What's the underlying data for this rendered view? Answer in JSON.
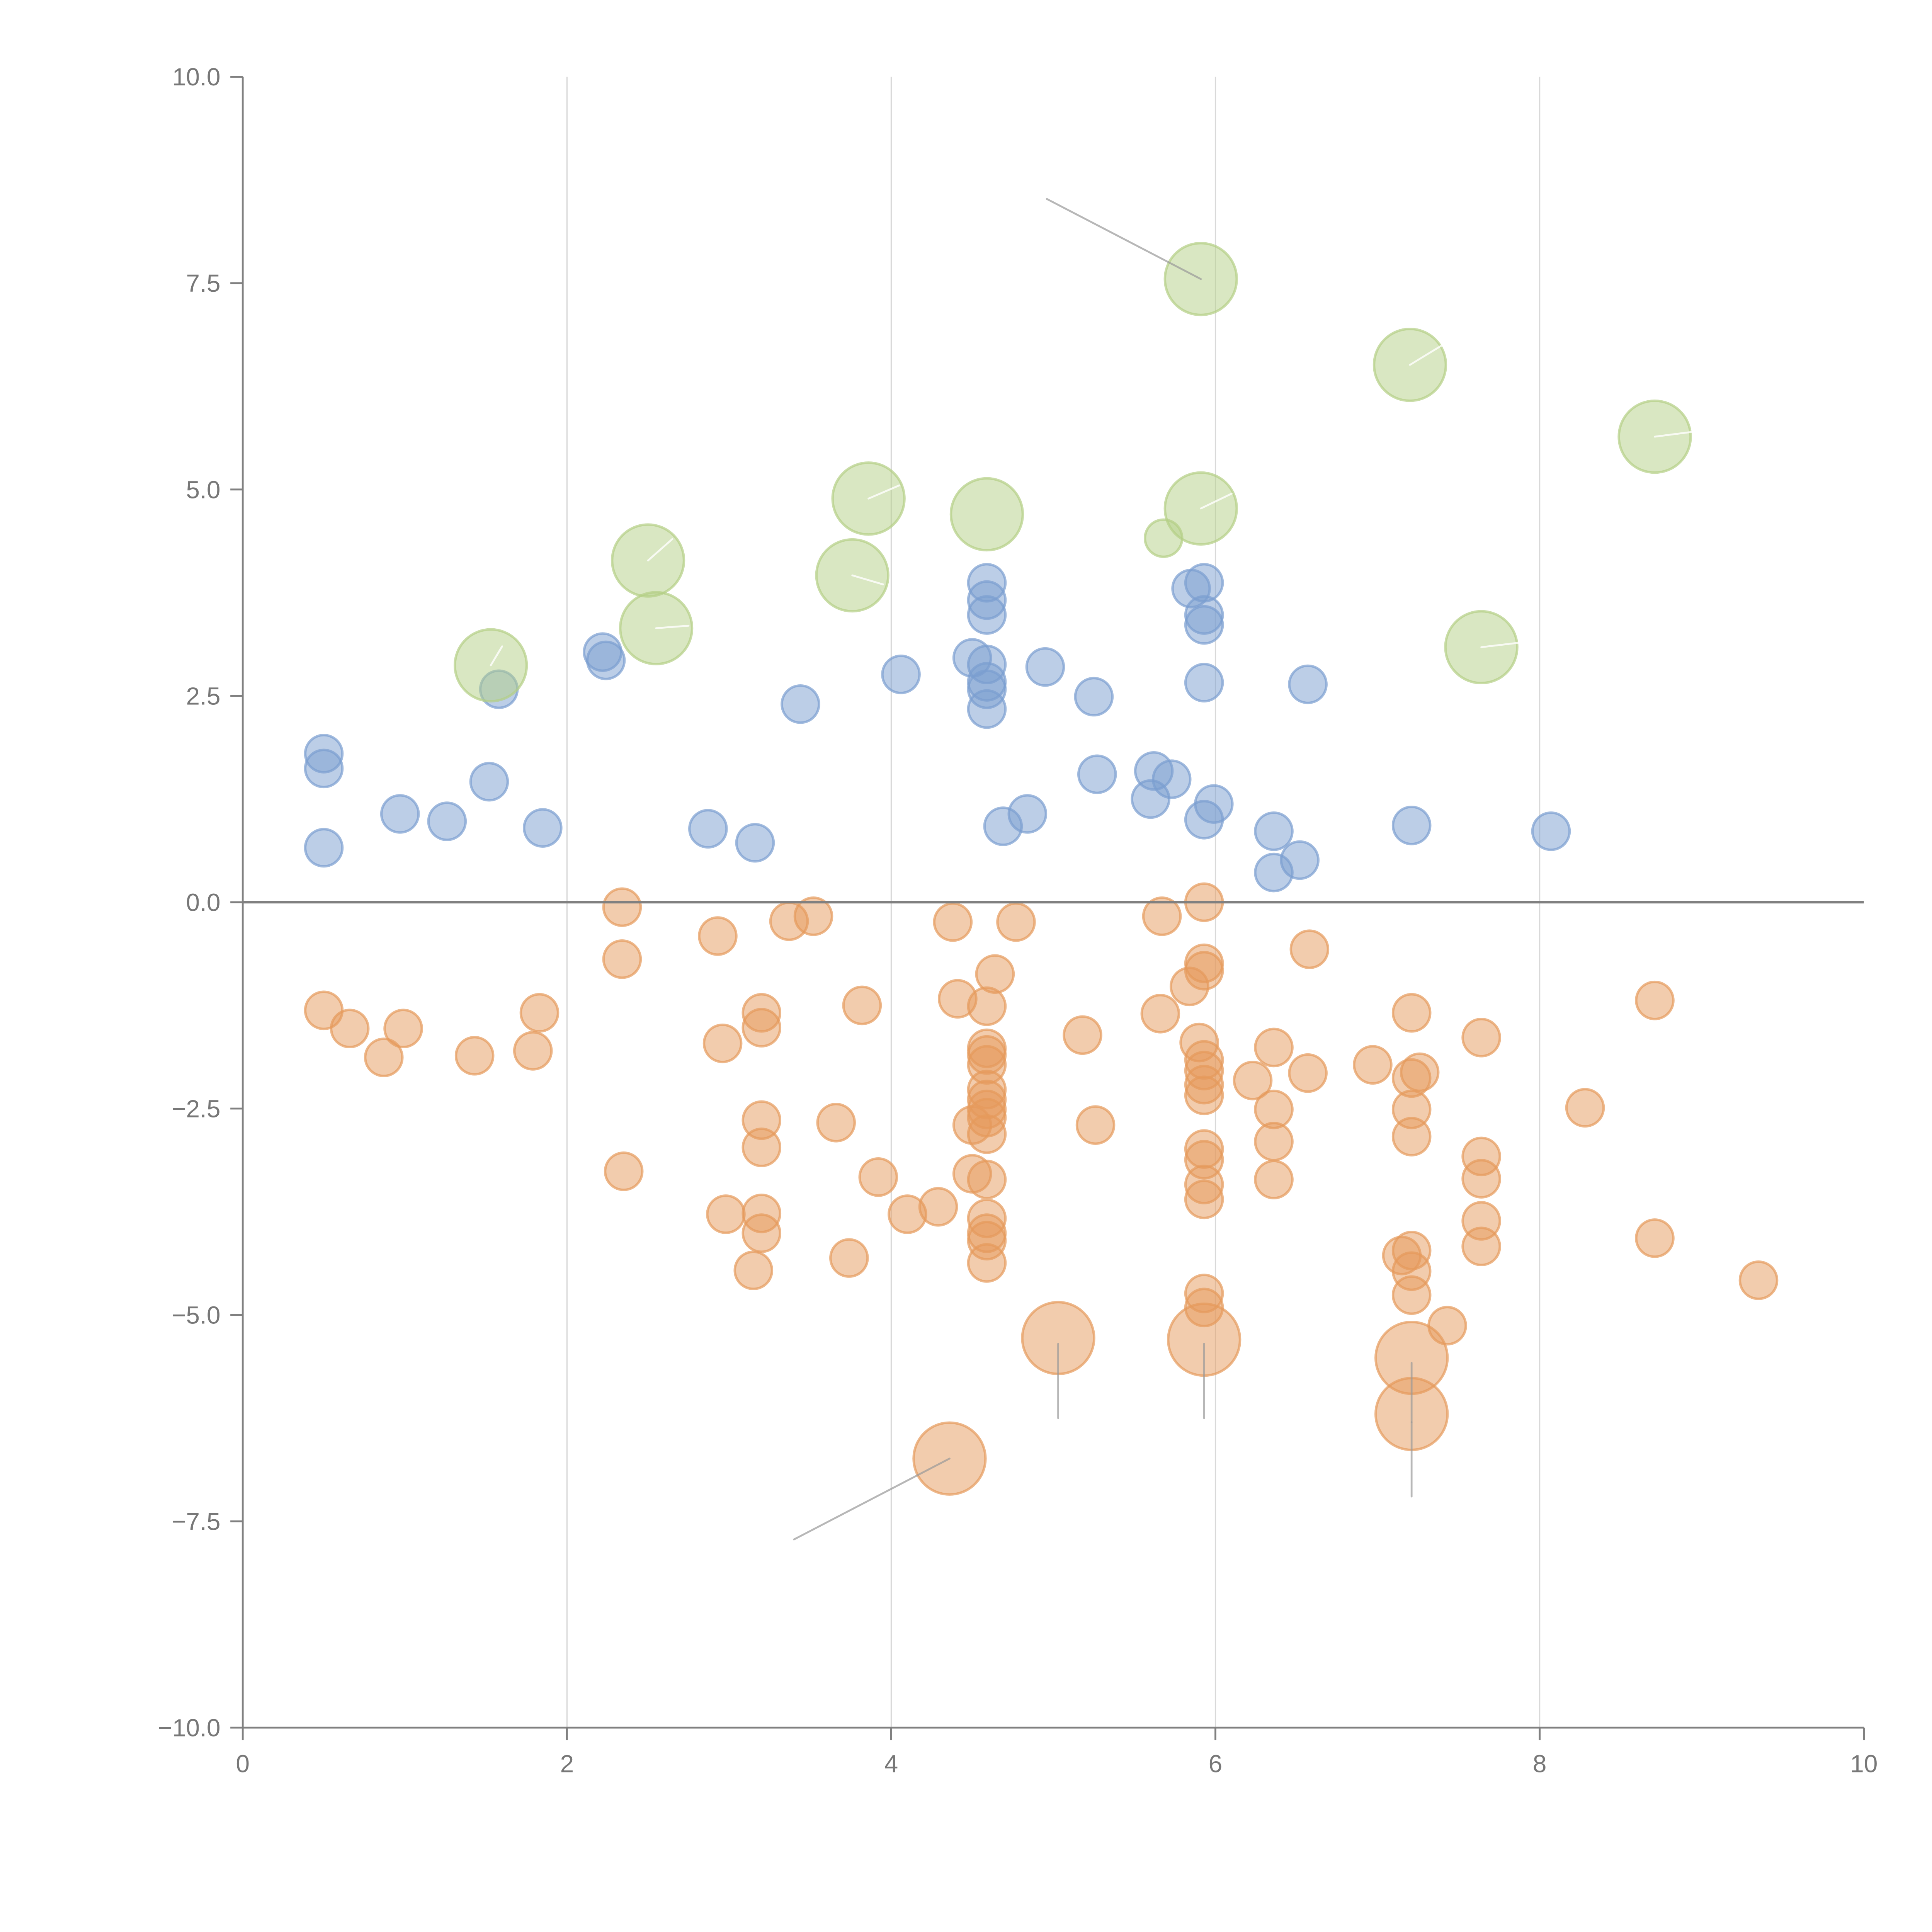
{
  "chart_data": {
    "type": "scatter",
    "title": "",
    "xlabel": "",
    "ylabel": "",
    "xlim": [
      0,
      10
    ],
    "ylim": [
      -10,
      10
    ],
    "grid": "vertical",
    "x_ticks": [
      "0",
      "2",
      "4",
      "6",
      "8",
      "10"
    ],
    "x_tick_values": [
      0,
      2,
      4,
      6,
      8,
      10
    ],
    "y_ticks": [
      "10.0",
      "7.5",
      "5.0",
      "2.5",
      "0.0",
      "−2.5",
      "−5.0",
      "−7.5",
      "−10.0"
    ],
    "y_tick_values": [
      10,
      7.5,
      5,
      2.5,
      0,
      -2.5,
      -5,
      -7.5,
      -10
    ],
    "colors": {
      "blue": "#7a9ed0",
      "green": "#b3cf85",
      "orange": "#e59a5b",
      "axis": "#808080",
      "grid": "#d9d9d9"
    },
    "series": [
      {
        "name": "blue",
        "size": "small",
        "points": [
          [
            0.5,
            1.8
          ],
          [
            0.5,
            1.62
          ],
          [
            0.5,
            0.66
          ],
          [
            0.97,
            1.07
          ],
          [
            1.26,
            0.98
          ],
          [
            1.52,
            1.46
          ],
          [
            1.58,
            2.58
          ],
          [
            1.85,
            0.9
          ],
          [
            2.22,
            3.03
          ],
          [
            2.24,
            2.93
          ],
          [
            2.87,
            0.89
          ],
          [
            3.16,
            0.72
          ],
          [
            3.44,
            2.4
          ],
          [
            4.06,
            2.76
          ],
          [
            4.5,
            2.96
          ],
          [
            4.59,
            3.87
          ],
          [
            4.59,
            3.66
          ],
          [
            4.59,
            3.48
          ],
          [
            4.59,
            2.88
          ],
          [
            4.59,
            2.67
          ],
          [
            4.59,
            2.58
          ],
          [
            4.59,
            2.34
          ],
          [
            4.69,
            0.92
          ],
          [
            4.84,
            1.07
          ],
          [
            4.95,
            2.85
          ],
          [
            5.25,
            2.49
          ],
          [
            5.27,
            1.55
          ],
          [
            5.6,
            1.25
          ],
          [
            5.62,
            1.59
          ],
          [
            5.73,
            1.49
          ],
          [
            5.85,
            3.8
          ],
          [
            5.93,
            3.87
          ],
          [
            5.93,
            3.48
          ],
          [
            5.93,
            3.36
          ],
          [
            5.93,
            2.66
          ],
          [
            5.93,
            1.0
          ],
          [
            5.99,
            1.19
          ],
          [
            6.36,
            0.86
          ],
          [
            6.36,
            0.36
          ],
          [
            6.52,
            0.51
          ],
          [
            6.57,
            2.64
          ],
          [
            7.21,
            0.93
          ],
          [
            8.07,
            0.86
          ]
        ]
      },
      {
        "name": "green",
        "size": "large",
        "points": [
          [
            1.53,
            2.87
          ],
          [
            2.5,
            4.14
          ],
          [
            2.55,
            3.32
          ],
          [
            3.76,
            3.96
          ],
          [
            3.86,
            4.89
          ],
          [
            4.59,
            4.7
          ],
          [
            5.91,
            7.55
          ],
          [
            5.91,
            4.77
          ],
          [
            7.2,
            6.51
          ],
          [
            7.64,
            3.09
          ],
          [
            8.71,
            5.64
          ]
        ]
      },
      {
        "name": "green",
        "size": "small",
        "points": [
          [
            5.68,
            4.41
          ]
        ]
      },
      {
        "name": "orange",
        "size": "small",
        "points": [
          [
            2.34,
            -0.06
          ],
          [
            2.34,
            -0.69
          ],
          [
            2.35,
            -3.26
          ],
          [
            0.5,
            -1.31
          ],
          [
            0.66,
            -1.53
          ],
          [
            0.87,
            -1.88
          ],
          [
            0.99,
            -1.53
          ],
          [
            1.43,
            -1.86
          ],
          [
            1.79,
            -1.8
          ],
          [
            1.83,
            -1.34
          ],
          [
            2.93,
            -0.41
          ],
          [
            2.96,
            -1.71
          ],
          [
            2.98,
            -3.78
          ],
          [
            3.15,
            -4.46
          ],
          [
            3.2,
            -1.34
          ],
          [
            3.2,
            -1.52
          ],
          [
            3.2,
            -2.64
          ],
          [
            3.2,
            -2.97
          ],
          [
            3.2,
            -3.77
          ],
          [
            3.2,
            -4.01
          ],
          [
            3.37,
            -0.23
          ],
          [
            3.52,
            -0.17
          ],
          [
            3.66,
            -2.67
          ],
          [
            3.74,
            -4.31
          ],
          [
            3.82,
            -1.25
          ],
          [
            3.92,
            -3.33
          ],
          [
            4.1,
            -3.78
          ],
          [
            4.29,
            -3.69
          ],
          [
            4.38,
            -0.24
          ],
          [
            4.41,
            -1.17
          ],
          [
            4.5,
            -2.7
          ],
          [
            4.5,
            -3.29
          ],
          [
            4.59,
            -1.26
          ],
          [
            4.59,
            -1.77
          ],
          [
            4.59,
            -1.85
          ],
          [
            4.59,
            -1.97
          ],
          [
            4.59,
            -2.27
          ],
          [
            4.59,
            -2.39
          ],
          [
            4.59,
            -2.51
          ],
          [
            4.59,
            -2.61
          ],
          [
            4.59,
            -2.81
          ],
          [
            4.59,
            -3.36
          ],
          [
            4.59,
            -3.83
          ],
          [
            4.59,
            -4.01
          ],
          [
            4.59,
            -4.1
          ],
          [
            4.59,
            -4.37
          ],
          [
            4.64,
            -0.87
          ],
          [
            4.77,
            -0.24
          ],
          [
            5.18,
            -1.61
          ],
          [
            5.26,
            -2.7
          ],
          [
            5.67,
            -0.17
          ],
          [
            5.66,
            -1.35
          ],
          [
            5.84,
            -1.02
          ],
          [
            5.93,
            0
          ],
          [
            5.93,
            -0.74
          ],
          [
            5.93,
            -0.83
          ],
          [
            5.9,
            -1.7
          ],
          [
            5.93,
            -1.91
          ],
          [
            5.93,
            -2.04
          ],
          [
            5.93,
            -2.21
          ],
          [
            5.93,
            -2.34
          ],
          [
            5.93,
            -2.99
          ],
          [
            5.93,
            -3.12
          ],
          [
            5.93,
            -3.42
          ],
          [
            5.93,
            -3.6
          ],
          [
            5.93,
            -4.74
          ],
          [
            5.93,
            -4.91
          ],
          [
            6.23,
            -2.16
          ],
          [
            6.36,
            -1.76
          ],
          [
            6.36,
            -2.51
          ],
          [
            6.36,
            -2.9
          ],
          [
            6.36,
            -3.36
          ],
          [
            6.57,
            -2.07
          ],
          [
            6.58,
            -0.57
          ],
          [
            6.97,
            -1.97
          ],
          [
            7.21,
            -1.34
          ],
          [
            7.21,
            -2.13
          ],
          [
            7.26,
            -2.06
          ],
          [
            7.21,
            -2.51
          ],
          [
            7.21,
            -2.84
          ],
          [
            7.15,
            -4.28
          ],
          [
            7.21,
            -4.22
          ],
          [
            7.21,
            -4.47
          ],
          [
            7.21,
            -4.76
          ],
          [
            7.43,
            -5.13
          ],
          [
            7.64,
            -1.64
          ],
          [
            7.64,
            -3.08
          ],
          [
            7.64,
            -3.35
          ],
          [
            7.64,
            -3.86
          ],
          [
            7.64,
            -4.17
          ],
          [
            8.28,
            -2.49
          ],
          [
            8.71,
            -1.19
          ],
          [
            8.71,
            -4.07
          ],
          [
            9.35,
            -4.58
          ]
        ]
      },
      {
        "name": "orange",
        "size": "large",
        "points": [
          [
            5.03,
            -5.28
          ],
          [
            5.93,
            -5.3
          ],
          [
            7.21,
            -5.52
          ],
          [
            7.21,
            -6.2
          ],
          [
            4.36,
            -6.74
          ]
        ]
      }
    ],
    "leader_lines": [
      {
        "from": [
          5.91,
          7.55
        ],
        "to": [
          4.96,
          8.52
        ],
        "color": "gray"
      },
      {
        "from": [
          4.36,
          -6.74
        ],
        "to": [
          3.4,
          -7.72
        ],
        "color": "gray"
      },
      {
        "from": [
          5.03,
          -5.35
        ],
        "to": [
          5.03,
          -6.25
        ],
        "color": "gray"
      },
      {
        "from": [
          5.93,
          -5.35
        ],
        "to": [
          5.93,
          -6.25
        ],
        "color": "gray"
      },
      {
        "from": [
          7.21,
          -5.58
        ],
        "to": [
          7.21,
          -6.3
        ],
        "color": "gray"
      },
      {
        "from": [
          7.21,
          -6.3
        ],
        "to": [
          7.21,
          -7.2
        ],
        "color": "gray"
      },
      {
        "from": [
          1.53,
          2.87
        ],
        "to": [
          1.6,
          3.1
        ],
        "color": "white"
      },
      {
        "from": [
          2.5,
          4.14
        ],
        "to": [
          2.65,
          4.4
        ],
        "color": "white"
      },
      {
        "from": [
          2.55,
          3.32
        ],
        "to": [
          2.75,
          3.35
        ],
        "color": "white"
      },
      {
        "from": [
          3.76,
          3.96
        ],
        "to": [
          3.95,
          3.85
        ],
        "color": "white"
      },
      {
        "from": [
          3.86,
          4.89
        ],
        "to": [
          4.05,
          5.05
        ],
        "color": "white"
      },
      {
        "from": [
          5.91,
          4.77
        ],
        "to": [
          6.1,
          4.95
        ],
        "color": "white"
      },
      {
        "from": [
          7.2,
          6.51
        ],
        "to": [
          7.4,
          6.75
        ],
        "color": "white"
      },
      {
        "from": [
          7.64,
          3.09
        ],
        "to": [
          7.9,
          3.15
        ],
        "color": "white"
      },
      {
        "from": [
          8.71,
          5.64
        ],
        "to": [
          8.95,
          5.7
        ],
        "color": "white"
      }
    ]
  }
}
